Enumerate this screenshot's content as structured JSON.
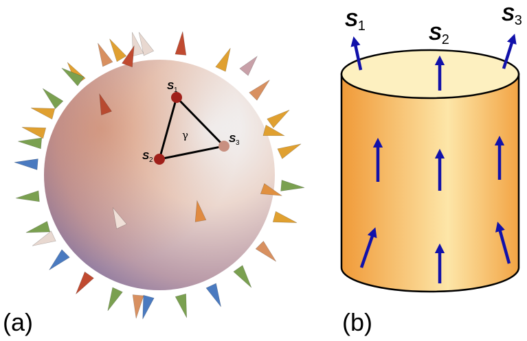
{
  "panel_a": {
    "label": "(a)",
    "angle": "γ",
    "points": [
      {
        "symbol": "S",
        "sub": "1"
      },
      {
        "symbol": "S",
        "sub": "2"
      },
      {
        "symbol": "S",
        "sub": "3"
      }
    ]
  },
  "panel_b": {
    "label": "(b)",
    "spins": [
      {
        "symbol": "S",
        "sub": "1"
      },
      {
        "symbol": "S",
        "sub": "2"
      },
      {
        "symbol": "S",
        "sub": "3"
      }
    ]
  }
}
